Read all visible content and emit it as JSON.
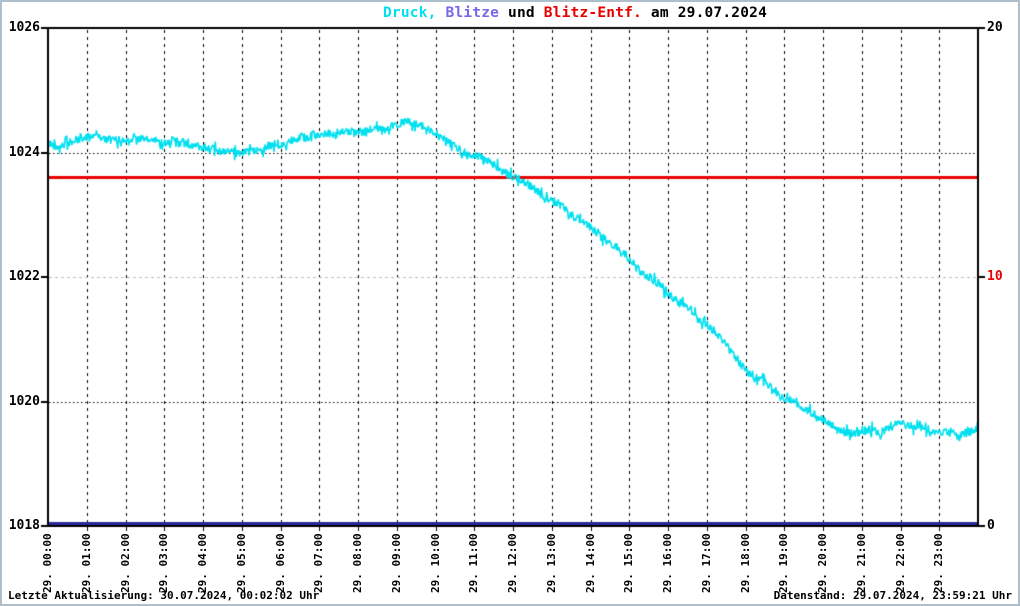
{
  "page": {
    "title_segments": [
      {
        "text": "Druck,",
        "color": "#00DFEF"
      },
      {
        "text": " Blitze",
        "color": "#7668E6"
      },
      {
        "text": " und ",
        "color": "#000000"
      },
      {
        "text": "Blitz-Entf.",
        "color": "#E80000"
      },
      {
        "text": " am 29.07.2024",
        "color": "#000000"
      }
    ],
    "footer_left": "Letzte Aktualisierung: 30.07.2024, 00:02:02 Uhr",
    "footer_right": "Datenstand: 29.07.2024, 23:59:21 Uhr"
  },
  "chart_data": {
    "type": "line",
    "title": "Druck, Blitze und Blitz-Entf. am 29.07.2024",
    "x_axis": {
      "range_hours": [
        0,
        24
      ],
      "tick_labels": [
        "29. 00:00",
        "29. 01:00",
        "29. 02:00",
        "29. 03:00",
        "29. 04:00",
        "29. 05:00",
        "29. 06:00",
        "29. 07:00",
        "29. 08:00",
        "29. 09:00",
        "29. 10:00",
        "29. 11:00",
        "29. 12:00",
        "29. 13:00",
        "29. 14:00",
        "29. 15:00",
        "29. 16:00",
        "29. 17:00",
        "29. 18:00",
        "29. 19:00",
        "29. 20:00",
        "29. 21:00",
        "29. 22:00",
        "29. 23:00"
      ]
    },
    "y_left": {
      "range": [
        1018,
        1026
      ],
      "tick_values": [
        1026,
        1024,
        1022,
        1020,
        1018
      ],
      "tick_color": "#000000"
    },
    "y_right": {
      "range": [
        0,
        20
      ],
      "ticks": [
        {
          "label": "20",
          "value": 20,
          "color": "#000000"
        },
        {
          "label": "10",
          "value": 10,
          "color": "#E80000"
        },
        {
          "label": "0",
          "value": 0,
          "color": "#000000"
        }
      ]
    },
    "gridlines": {
      "vertical": {
        "every_hours": 1,
        "style": "dashed",
        "color": "#000000"
      },
      "horizontal": [
        {
          "at_left_value": 1024,
          "style": "dotted",
          "color": "#000000"
        },
        {
          "at_left_value": 1022,
          "style": "dashed",
          "color": "#BDBDBD"
        },
        {
          "at_left_value": 1020,
          "style": "dotted",
          "color": "#000000"
        }
      ]
    },
    "series": [
      {
        "name": "Druck",
        "style": "noisy-line",
        "color": "#00DFEF",
        "axis": "left",
        "x_start_hour": 0,
        "x_step_hours": 0.25,
        "noise_amplitude": 0.07,
        "noise_seed": 42,
        "values": [
          1024.15,
          1024.1,
          1024.15,
          1024.2,
          1024.25,
          1024.3,
          1024.2,
          1024.2,
          1024.2,
          1024.25,
          1024.2,
          1024.2,
          1024.15,
          1024.2,
          1024.15,
          1024.1,
          1024.1,
          1024.05,
          1024.0,
          1024.0,
          1024.0,
          1024.0,
          1024.05,
          1024.1,
          1024.1,
          1024.2,
          1024.25,
          1024.25,
          1024.3,
          1024.3,
          1024.3,
          1024.35,
          1024.3,
          1024.35,
          1024.4,
          1024.35,
          1024.45,
          1024.5,
          1024.45,
          1024.4,
          1024.3,
          1024.2,
          1024.1,
          1024.0,
          1023.95,
          1023.9,
          1023.8,
          1023.7,
          1023.6,
          1023.55,
          1023.45,
          1023.3,
          1023.25,
          1023.15,
          1023.0,
          1022.9,
          1022.8,
          1022.65,
          1022.55,
          1022.45,
          1022.3,
          1022.1,
          1022.0,
          1021.9,
          1021.75,
          1021.6,
          1021.5,
          1021.35,
          1021.25,
          1021.1,
          1020.9,
          1020.7,
          1020.5,
          1020.4,
          1020.3,
          1020.2,
          1020.05,
          1020.0,
          1019.9,
          1019.8,
          1019.7,
          1019.6,
          1019.5,
          1019.5,
          1019.5,
          1019.55,
          1019.5,
          1019.6,
          1019.65,
          1019.6,
          1019.6,
          1019.5,
          1019.5,
          1019.5,
          1019.45,
          1019.5,
          1019.55
        ]
      },
      {
        "name": "Blitz-Entf.",
        "style": "hline",
        "color": "#E80000",
        "value_left_axis": 1023.6,
        "value_right_axis": 14
      },
      {
        "name": "Blitze",
        "style": "hline",
        "color": "#2A2A9E",
        "value_right_axis": 0
      }
    ]
  }
}
